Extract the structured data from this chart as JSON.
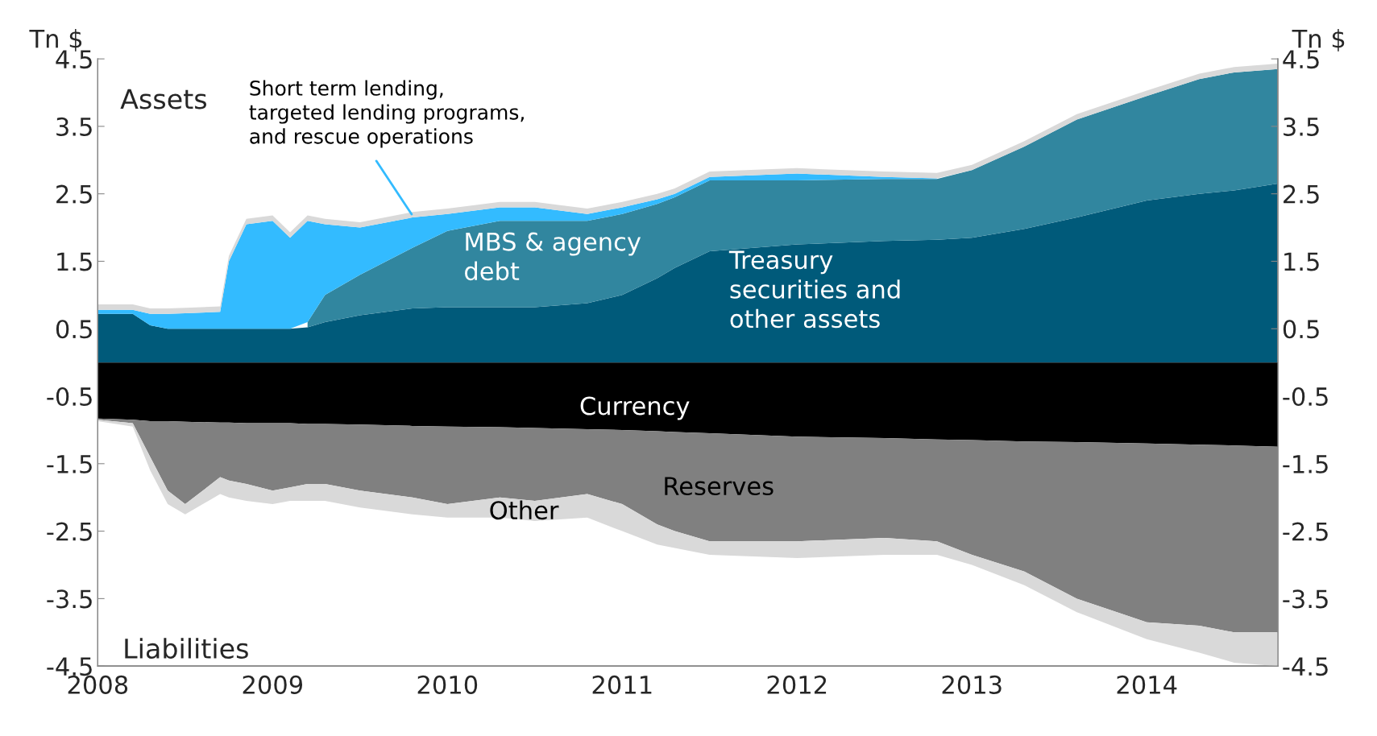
{
  "chart_data": [
    {
      "type": "area",
      "stacked": true,
      "ylabel": "Tn $",
      "y2label": "Tn $",
      "annotations": [
        "Assets"
      ],
      "x": [
        2008.0,
        2008.2,
        2008.3,
        2008.4,
        2008.5,
        2008.7,
        2008.75,
        2008.85,
        2009.0,
        2009.1,
        2009.2,
        2009.3,
        2009.5,
        2009.8,
        2010.0,
        2010.3,
        2010.5,
        2010.8,
        2011.0,
        2011.2,
        2011.3,
        2011.5,
        2012.0,
        2012.5,
        2012.8,
        2013.0,
        2013.3,
        2013.6,
        2014.0,
        2014.3,
        2014.5,
        2014.75
      ],
      "series": [
        {
          "name": "Treasury\nsecurities and\nother assets",
          "color": "#005a7a",
          "values": [
            0.72,
            0.72,
            0.55,
            0.5,
            0.5,
            0.5,
            0.5,
            0.5,
            0.5,
            0.5,
            0.52,
            0.6,
            0.7,
            0.8,
            0.82,
            0.82,
            0.82,
            0.88,
            1.0,
            1.25,
            1.4,
            1.65,
            1.75,
            1.8,
            1.82,
            1.85,
            1.98,
            2.15,
            2.4,
            2.5,
            2.55,
            2.65
          ]
        },
        {
          "name": "MBS & agency\ndebt",
          "color": "#31869f",
          "values": [
            null,
            null,
            null,
            null,
            null,
            null,
            null,
            null,
            null,
            null,
            0.08,
            0.4,
            0.6,
            0.9,
            1.13,
            1.28,
            1.28,
            1.22,
            1.2,
            1.1,
            1.05,
            1.05,
            0.95,
            0.92,
            0.9,
            1.0,
            1.22,
            1.45,
            1.55,
            1.7,
            1.75,
            1.7
          ]
        },
        {
          "name": "Short term lending,\ntargeted lending programs,\nand rescue operations",
          "color": "#33bbff",
          "values": [
            0.06,
            0.06,
            0.17,
            0.22,
            0.23,
            0.25,
            1.0,
            1.55,
            1.6,
            1.35,
            1.5,
            1.05,
            0.7,
            0.45,
            0.25,
            0.2,
            0.2,
            0.1,
            0.1,
            0.07,
            0.05,
            0.05,
            0.1,
            0.03,
            0.01,
            null,
            null,
            null,
            null,
            null,
            null,
            null
          ]
        },
        {
          "color": "#d9d9d9",
          "values": [
            0.08,
            0.08,
            0.08,
            0.08,
            0.08,
            0.08,
            0.08,
            0.08,
            0.08,
            0.08,
            0.08,
            0.08,
            0.08,
            0.08,
            0.08,
            0.08,
            0.08,
            0.08,
            0.08,
            0.08,
            0.08,
            0.08,
            0.08,
            0.08,
            0.08,
            0.08,
            0.08,
            0.08,
            0.08,
            0.08,
            0.08,
            0.08
          ]
        }
      ],
      "xlim": [
        2008,
        2014.75
      ],
      "xticks": [
        2008,
        2009,
        2010,
        2011,
        2012,
        2013,
        2014
      ],
      "ylim": [
        -4.5,
        4.5
      ],
      "yticks": [
        -4.5,
        -3.5,
        -2.5,
        -1.5,
        -0.5,
        0.5,
        1.5,
        2.5,
        3.5,
        4.5
      ],
      "y2lim": [
        -4.5,
        4.5
      ],
      "y2ticks": [
        -4.5,
        -3.5,
        -2.5,
        -1.5,
        -0.5,
        0.5,
        1.5,
        2.5,
        3.5,
        4.5
      ]
    },
    {
      "type": "area",
      "stacked": true,
      "annotations": [
        "Liabilities"
      ],
      "tick_labels": false,
      "x": [
        2008.0,
        2008.2,
        2008.3,
        2008.4,
        2008.5,
        2008.7,
        2008.75,
        2008.85,
        2009.0,
        2009.1,
        2009.2,
        2009.3,
        2009.5,
        2009.8,
        2010.0,
        2010.3,
        2010.5,
        2010.8,
        2011.0,
        2011.2,
        2011.3,
        2011.5,
        2012.0,
        2012.5,
        2012.8,
        2013.0,
        2013.3,
        2013.6,
        2014.0,
        2014.3,
        2014.5,
        2014.75
      ],
      "series": [
        {
          "name": "Currency",
          "color": "#000000",
          "values": [
            -0.83,
            -0.85,
            -0.87,
            -0.87,
            -0.88,
            -0.89,
            -0.89,
            -0.9,
            -0.9,
            -0.9,
            -0.91,
            -0.91,
            -0.92,
            -0.94,
            -0.95,
            -0.96,
            -0.97,
            -0.99,
            -1.0,
            -1.02,
            -1.03,
            -1.05,
            -1.1,
            -1.12,
            -1.14,
            -1.15,
            -1.17,
            -1.18,
            -1.2,
            -1.22,
            -1.23,
            -1.25
          ]
        },
        {
          "name": "Reserves",
          "color": "#808080",
          "values": [
            -0.02,
            -0.05,
            -0.53,
            -1.03,
            -1.22,
            -0.81,
            -0.86,
            -0.9,
            -1.0,
            -0.95,
            -0.89,
            -0.89,
            -0.98,
            -1.06,
            -1.15,
            -1.04,
            -1.08,
            -0.96,
            -1.1,
            -1.38,
            -1.47,
            -1.6,
            -1.55,
            -1.48,
            -1.51,
            -1.7,
            -1.93,
            -2.32,
            -2.65,
            -2.68,
            -2.77,
            -2.75
          ]
        },
        {
          "name": "Other",
          "color": "#d9d9d9",
          "values": [
            -0.02,
            -0.05,
            -0.2,
            -0.2,
            -0.15,
            -0.25,
            -0.25,
            -0.25,
            -0.2,
            -0.2,
            -0.25,
            -0.25,
            -0.25,
            -0.25,
            -0.2,
            -0.3,
            -0.3,
            -0.35,
            -0.4,
            -0.3,
            -0.25,
            -0.2,
            -0.25,
            -0.25,
            -0.2,
            -0.15,
            -0.2,
            -0.2,
            -0.25,
            -0.4,
            -0.45,
            -0.5
          ]
        }
      ],
      "xlim": [
        2008,
        2014.75
      ],
      "ylim": [
        -4.5,
        4.5
      ]
    }
  ]
}
